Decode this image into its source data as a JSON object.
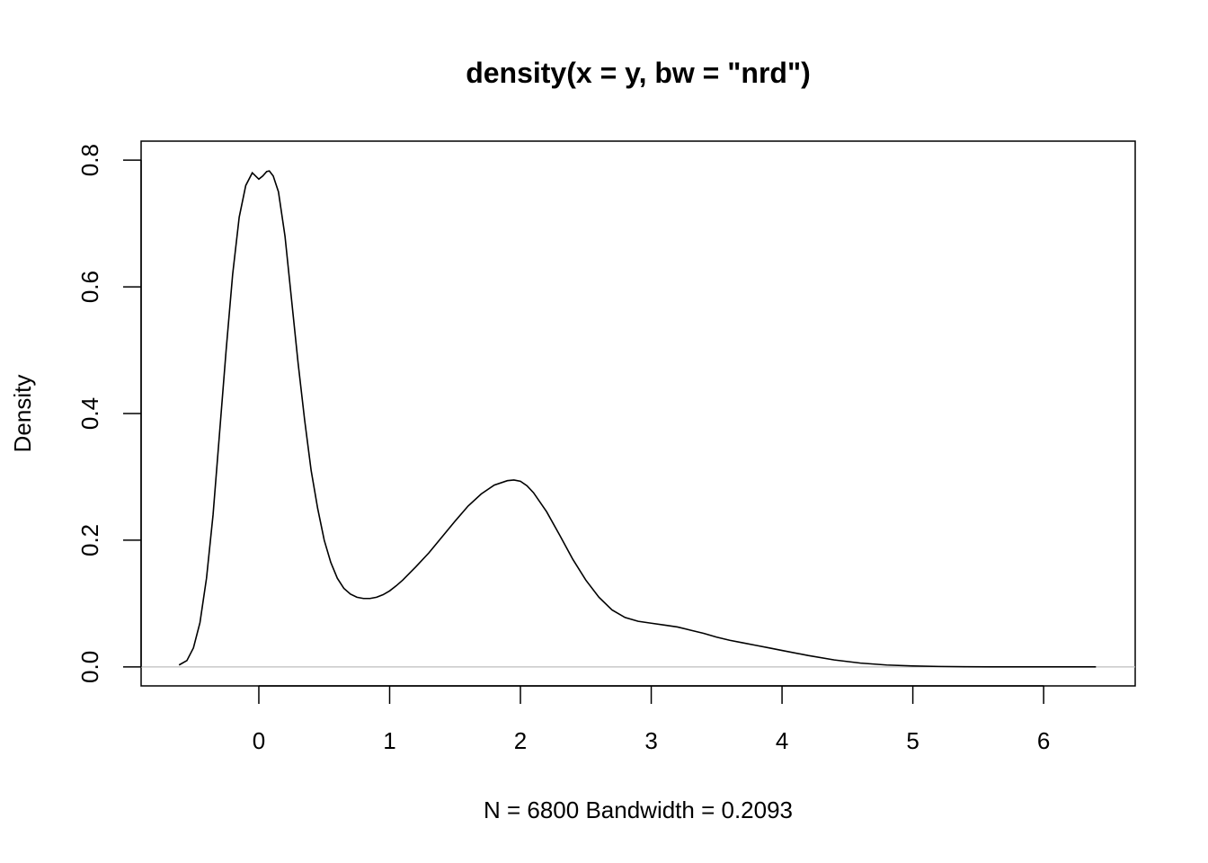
{
  "chart_data": {
    "type": "line",
    "title": "density(x = y, bw = \"nrd\")",
    "xlabel": "N = 6800   Bandwidth = 0.2093",
    "ylabel": "Density",
    "xlim": [
      -0.9,
      6.7
    ],
    "ylim": [
      -0.03,
      0.83
    ],
    "x_ticks": [
      0,
      1,
      2,
      3,
      4,
      5,
      6
    ],
    "x_tick_labels": [
      "0",
      "1",
      "2",
      "3",
      "4",
      "5",
      "6"
    ],
    "y_ticks": [
      0.0,
      0.2,
      0.4,
      0.6,
      0.8
    ],
    "y_tick_labels": [
      "0.0",
      "0.2",
      "0.4",
      "0.6",
      "0.8"
    ],
    "grid": false,
    "baseline": 0,
    "line_color": "#000000",
    "baseline_color": "#bebebe",
    "series": [
      {
        "x": [
          -0.61,
          -0.55,
          -0.5,
          -0.45,
          -0.4,
          -0.35,
          -0.3,
          -0.25,
          -0.2,
          -0.15,
          -0.1,
          -0.05,
          0.0,
          0.03,
          0.06,
          0.08,
          0.11,
          0.15,
          0.2,
          0.25,
          0.3,
          0.35,
          0.4,
          0.45,
          0.5,
          0.55,
          0.6,
          0.65,
          0.7,
          0.75,
          0.8,
          0.85,
          0.9,
          0.95,
          1.0,
          1.05,
          1.1,
          1.2,
          1.3,
          1.4,
          1.5,
          1.6,
          1.7,
          1.8,
          1.9,
          1.95,
          2.0,
          2.05,
          2.1,
          2.2,
          2.3,
          2.4,
          2.5,
          2.6,
          2.7,
          2.8,
          2.9,
          3.0,
          3.1,
          3.2,
          3.3,
          3.4,
          3.5,
          3.6,
          3.7,
          3.8,
          3.9,
          4.0,
          4.2,
          4.4,
          4.6,
          4.8,
          5.0,
          5.2,
          5.4,
          5.6,
          5.8,
          6.0,
          6.2,
          6.4
        ],
        "values": [
          0.003,
          0.01,
          0.03,
          0.07,
          0.14,
          0.24,
          0.37,
          0.5,
          0.62,
          0.71,
          0.76,
          0.78,
          0.77,
          0.775,
          0.782,
          0.783,
          0.775,
          0.75,
          0.68,
          0.58,
          0.48,
          0.39,
          0.31,
          0.25,
          0.2,
          0.165,
          0.14,
          0.124,
          0.115,
          0.11,
          0.108,
          0.108,
          0.11,
          0.114,
          0.12,
          0.128,
          0.137,
          0.158,
          0.18,
          0.205,
          0.23,
          0.254,
          0.273,
          0.287,
          0.294,
          0.295,
          0.293,
          0.286,
          0.275,
          0.245,
          0.208,
          0.17,
          0.137,
          0.11,
          0.09,
          0.078,
          0.072,
          0.069,
          0.066,
          0.063,
          0.058,
          0.053,
          0.047,
          0.042,
          0.038,
          0.034,
          0.03,
          0.026,
          0.018,
          0.011,
          0.006,
          0.003,
          0.0015,
          0.0007,
          0.0003,
          0.0001,
          5e-05,
          2e-05,
          1e-05,
          0.0
        ]
      }
    ]
  }
}
